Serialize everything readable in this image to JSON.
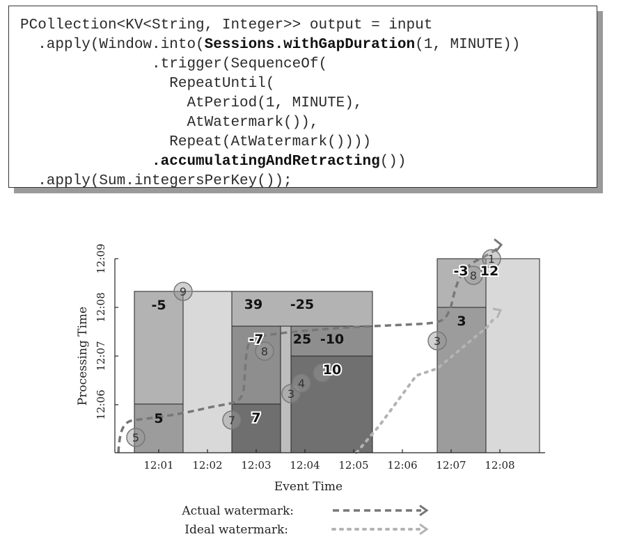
{
  "code": {
    "line1": "PCollection<KV<String, Integer>> output = input",
    "line2_pre": "  .apply(Window.into(",
    "line2_bold": "Sessions.withGapDuration",
    "line2_post": "(1, MINUTE))",
    "line3": "               .trigger(SequenceOf(",
    "line4": "                 RepeatUntil(",
    "line5": "                   AtPeriod(1, MINUTE),",
    "line6": "                   AtWatermark()),",
    "line7": "                 Repeat(AtWatermark())))",
    "line8_pre": "               ",
    "line8_bold": ".accumulatingAndRetracting",
    "line8_post": "())",
    "line9": "  .apply(Sum.integersPerKey());"
  },
  "chart_data": {
    "type": "diagram",
    "xlabel": "Event Time",
    "ylabel": "Processing Time",
    "x_ticks": [
      "12:01",
      "12:02",
      "12:03",
      "12:04",
      "12:05",
      "12:06",
      "12:07",
      "12:08"
    ],
    "y_ticks": [
      "12:06",
      "12:07",
      "12:08",
      "12:09"
    ],
    "pane_labels": [
      "-5",
      "39",
      "-25",
      "5",
      "-7",
      "25",
      "-10",
      "7",
      "10",
      "-3",
      "12",
      "3"
    ],
    "inputs": [
      {
        "value": "5",
        "event_time": "12:00.5",
        "processing_time": "12:05.7"
      },
      {
        "value": "9",
        "event_time": "12:01.5",
        "processing_time": "12:08.3"
      },
      {
        "value": "7",
        "event_time": "12:02.5",
        "processing_time": "12:05.7"
      },
      {
        "value": "8",
        "event_time": "12:03.2",
        "processing_time": "12:07.2"
      },
      {
        "value": "3",
        "event_time": "12:03.7",
        "processing_time": "12:06.2"
      },
      {
        "value": "4",
        "event_time": "12:04.1",
        "processing_time": "12:06.4"
      },
      {
        "value": "3",
        "event_time": "12:06.6",
        "processing_time": "12:07.3"
      },
      {
        "value": "8",
        "event_time": "12:07.4",
        "processing_time": "12:08.6"
      },
      {
        "value": "1",
        "event_time": "12:07.6",
        "processing_time": "12:09.0"
      }
    ],
    "grid": false
  },
  "legend": {
    "actual": "Actual watermark:",
    "ideal": "Ideal watermark:"
  }
}
